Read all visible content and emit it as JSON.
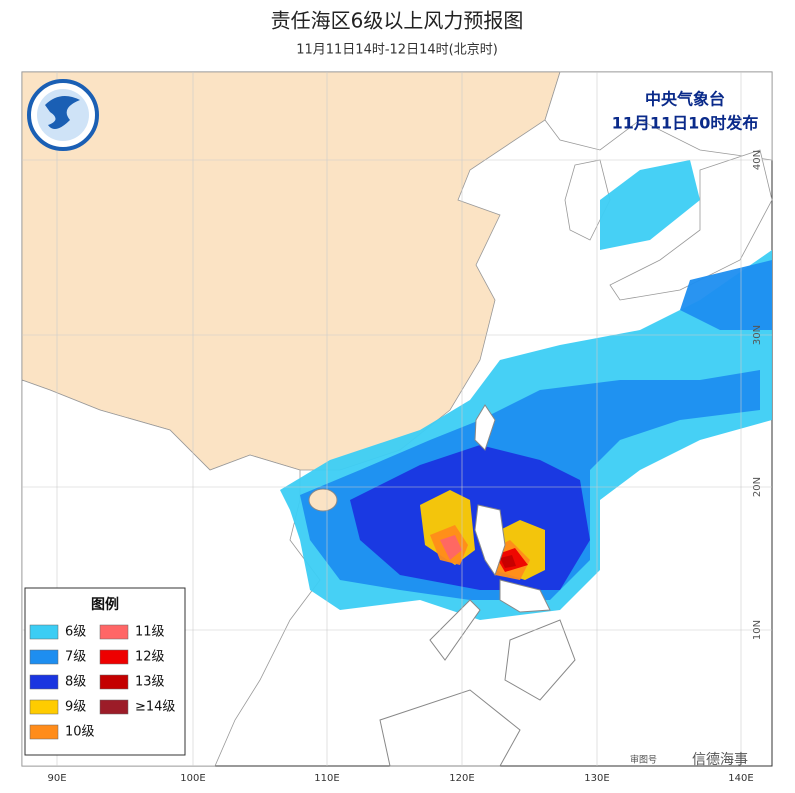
{
  "header": {
    "title": "责任海区6级以上风力预报图",
    "subtitle": "11月11日14时-12日14时(北京时)"
  },
  "publisher": {
    "name": "中央气象台",
    "issued": "11月11日10时发布"
  },
  "legend": {
    "title": "图例",
    "items": [
      {
        "label": "6级",
        "color": "#3ccdf4"
      },
      {
        "label": "7级",
        "color": "#1e8ef0"
      },
      {
        "label": "8级",
        "color": "#1a35e0"
      },
      {
        "label": "9级",
        "color": "#ffcc00"
      },
      {
        "label": "10级",
        "color": "#ff8c1a"
      },
      {
        "label": "11级",
        "color": "#ff6666"
      },
      {
        "label": "12级",
        "color": "#ee0000"
      },
      {
        "label": "13级",
        "color": "#c40000"
      },
      {
        "label": "≥14级",
        "color": "#9c1c28"
      }
    ]
  },
  "axes": {
    "longitude": [
      "90E",
      "100E",
      "110E",
      "120E",
      "130E",
      "140E"
    ],
    "latitude": [
      "40N",
      "30N",
      "20N",
      "10N"
    ]
  },
  "footer": {
    "map_note": "审图号",
    "watermark": "信德海事"
  }
}
